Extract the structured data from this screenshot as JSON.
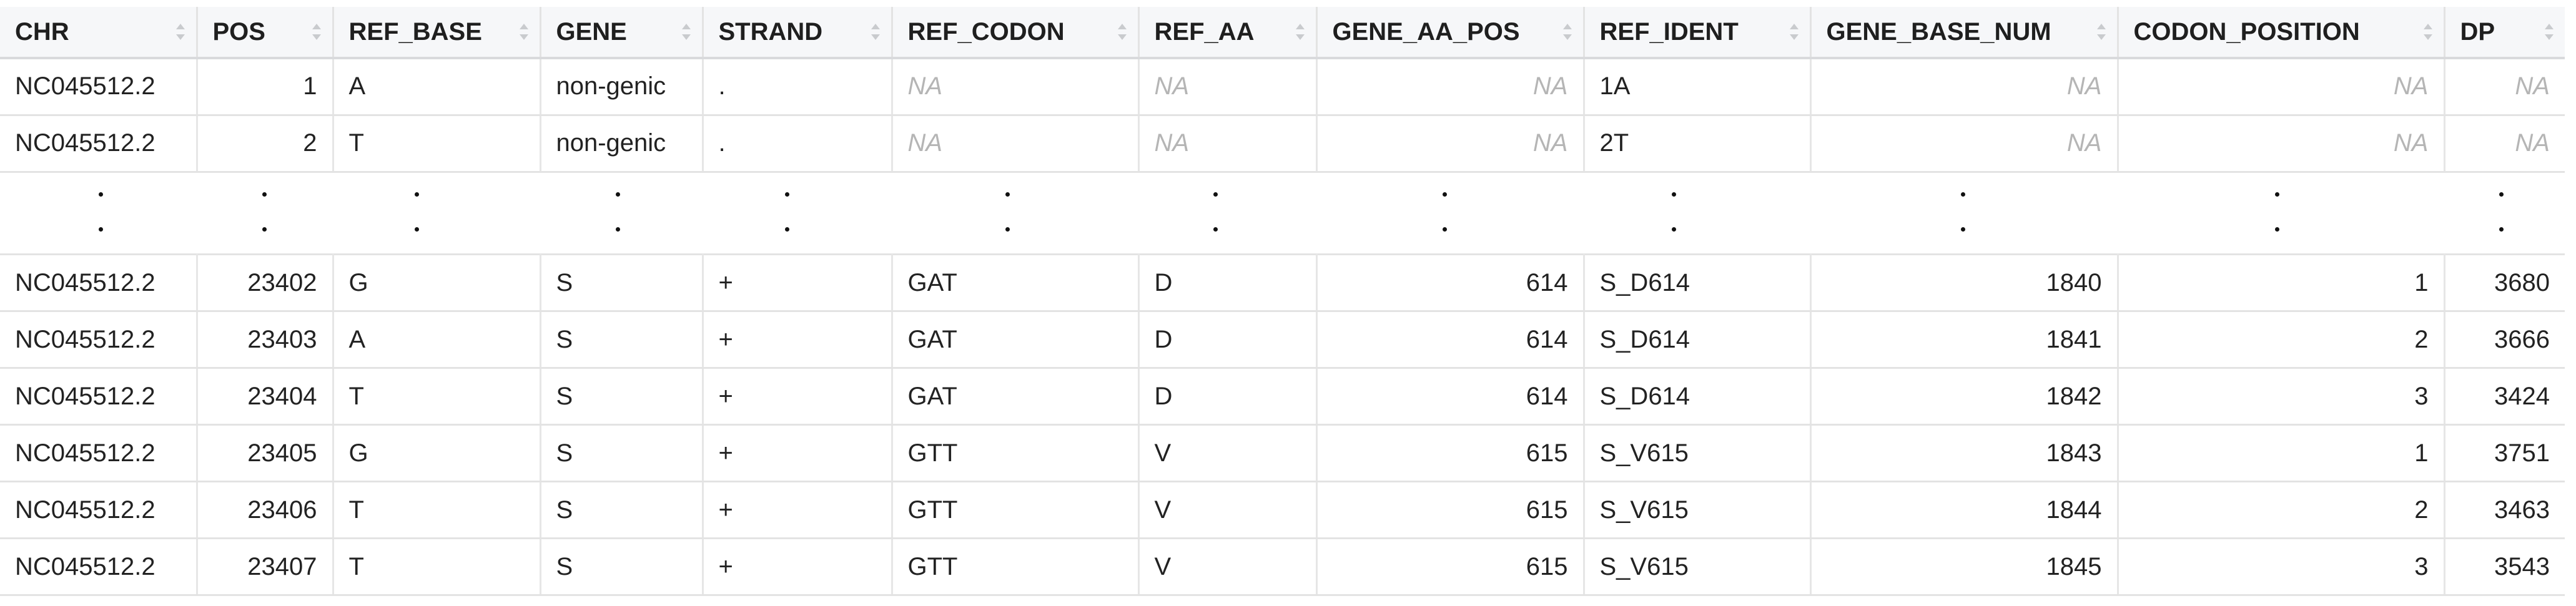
{
  "columns": [
    "CHR",
    "POS",
    "REF_BASE",
    "GENE",
    "STRAND",
    "REF_CODON",
    "REF_AA",
    "GENE_AA_POS",
    "REF_IDENT",
    "GENE_BASE_NUM",
    "CODON_POSITION",
    "DP"
  ],
  "rows_top": [
    [
      "NC045512.2",
      "1",
      "A",
      "non-genic",
      ".",
      "NA",
      "NA",
      "NA",
      "1A",
      "NA",
      "NA",
      "NA"
    ],
    [
      "NC045512.2",
      "2",
      "T",
      "non-genic",
      ".",
      "NA",
      "NA",
      "NA",
      "2T",
      "NA",
      "NA",
      "NA"
    ]
  ],
  "ellipsis_mark": ".",
  "rows_bottom": [
    [
      "NC045512.2",
      "23402",
      "G",
      "S",
      "+",
      "GAT",
      "D",
      "614",
      "S_D614",
      "1840",
      "1",
      "3680"
    ],
    [
      "NC045512.2",
      "23403",
      "A",
      "S",
      "+",
      "GAT",
      "D",
      "614",
      "S_D614",
      "1841",
      "2",
      "3666"
    ],
    [
      "NC045512.2",
      "23404",
      "T",
      "S",
      "+",
      "GAT",
      "D",
      "614",
      "S_D614",
      "1842",
      "3",
      "3424"
    ],
    [
      "NC045512.2",
      "23405",
      "G",
      "S",
      "+",
      "GTT",
      "V",
      "615",
      "S_V615",
      "1843",
      "1",
      "3751"
    ],
    [
      "NC045512.2",
      "23406",
      "T",
      "S",
      "+",
      "GTT",
      "V",
      "615",
      "S_V615",
      "1844",
      "2",
      "3463"
    ],
    [
      "NC045512.2",
      "23407",
      "T",
      "S",
      "+",
      "GTT",
      "V",
      "615",
      "S_V615",
      "1845",
      "3",
      "3543"
    ]
  ],
  "icons": {
    "sort": "sort-arrows-icon"
  }
}
